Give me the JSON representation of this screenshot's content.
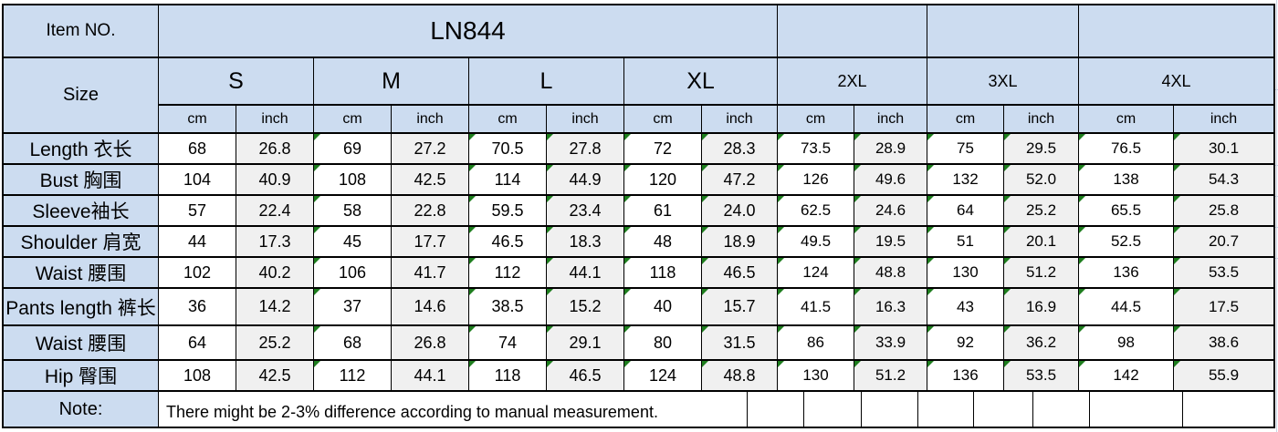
{
  "table": {
    "item_no_label": "Item NO.",
    "item_no_value": "LN844",
    "size_label": "Size",
    "sizes": [
      "S",
      "M",
      "L",
      "XL",
      "2XL",
      "3XL",
      "4XL"
    ],
    "unit_cm": "cm",
    "unit_inch": "inch",
    "rows": [
      {
        "label": "Length 衣长",
        "values": [
          "68",
          "26.8",
          "69",
          "27.2",
          "70.5",
          "27.8",
          "72",
          "28.3",
          "73.5",
          "28.9",
          "75",
          "29.5",
          "76.5",
          "30.1"
        ]
      },
      {
        "label": "Bust 胸围",
        "values": [
          "104",
          "40.9",
          "108",
          "42.5",
          "114",
          "44.9",
          "120",
          "47.2",
          "126",
          "49.6",
          "132",
          "52.0",
          "138",
          "54.3"
        ]
      },
      {
        "label": "Sleeve袖长",
        "values": [
          "57",
          "22.4",
          "58",
          "22.8",
          "59.5",
          "23.4",
          "61",
          "24.0",
          "62.5",
          "24.6",
          "64",
          "25.2",
          "65.5",
          "25.8"
        ]
      },
      {
        "label": "Shoulder 肩宽",
        "values": [
          "44",
          "17.3",
          "45",
          "17.7",
          "46.5",
          "18.3",
          "48",
          "18.9",
          "49.5",
          "19.5",
          "51",
          "20.1",
          "52.5",
          "20.7"
        ]
      },
      {
        "label": "Waist 腰围",
        "values": [
          "102",
          "40.2",
          "106",
          "41.7",
          "112",
          "44.1",
          "118",
          "46.5",
          "124",
          "48.8",
          "130",
          "51.2",
          "136",
          "53.5"
        ]
      },
      {
        "label": "Pants length 裤长",
        "values": [
          "36",
          "14.2",
          "37",
          "14.6",
          "38.5",
          "15.2",
          "40",
          "15.7",
          "41.5",
          "16.3",
          "43",
          "16.9",
          "44.5",
          "17.5"
        ]
      },
      {
        "label": "Waist 腰围",
        "values": [
          "64",
          "25.2",
          "68",
          "26.8",
          "74",
          "29.1",
          "80",
          "31.5",
          "86",
          "33.9",
          "92",
          "36.2",
          "98",
          "38.6"
        ]
      },
      {
        "label": "Hip 臀围",
        "values": [
          "108",
          "42.5",
          "112",
          "44.1",
          "118",
          "46.5",
          "124",
          "48.8",
          "130",
          "51.2",
          "136",
          "53.5",
          "142",
          "55.9"
        ]
      }
    ],
    "note_label": "Note:",
    "note_text": "There might be 2-3% difference according to manual measurement.",
    "colors": {
      "header_blue": "#ccdcf0",
      "inch_column_gray": "#f0f0f0",
      "border_black": "#000000",
      "error_indicator_green": "#1e7e1e"
    }
  }
}
